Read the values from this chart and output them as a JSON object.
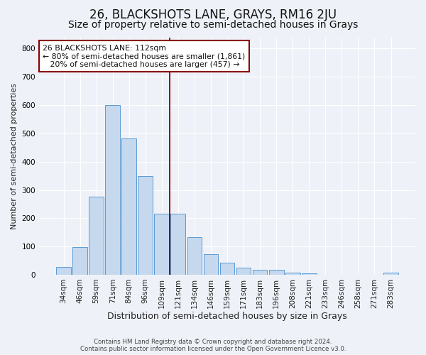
{
  "title": "26, BLACKSHOTS LANE, GRAYS, RM16 2JU",
  "subtitle": "Size of property relative to semi-detached houses in Grays",
  "xlabel": "Distribution of semi-detached houses by size in Grays",
  "ylabel": "Number of semi-detached properties",
  "categories": [
    "34sqm",
    "46sqm",
    "59sqm",
    "71sqm",
    "84sqm",
    "96sqm",
    "109sqm",
    "121sqm",
    "134sqm",
    "146sqm",
    "159sqm",
    "171sqm",
    "183sqm",
    "196sqm",
    "208sqm",
    "221sqm",
    "233sqm",
    "246sqm",
    "258sqm",
    "271sqm",
    "283sqm"
  ],
  "values": [
    28,
    97,
    275,
    600,
    482,
    350,
    217,
    217,
    133,
    72,
    42,
    25,
    17,
    17,
    8,
    5,
    0,
    0,
    0,
    0,
    8
  ],
  "bar_color": "#c5d8ed",
  "bar_edge_color": "#5b9bd5",
  "highlight_index": 6,
  "highlight_line_color": "#8b0000",
  "annotation_line1": "26 BLACKSHOTS LANE: 112sqm",
  "annotation_line2": "← 80% of semi-detached houses are smaller (1,861)",
  "annotation_line3": "   20% of semi-detached houses are larger (457) →",
  "annotation_box_color": "#ffffff",
  "annotation_box_edge_color": "#8b0000",
  "footer_text": "Contains HM Land Registry data © Crown copyright and database right 2024.\nContains public sector information licensed under the Open Government Licence v3.0.",
  "ylim": [
    0,
    840
  ],
  "background_color": "#eef2f8",
  "grid_color": "#ffffff",
  "title_fontsize": 12,
  "subtitle_fontsize": 10
}
